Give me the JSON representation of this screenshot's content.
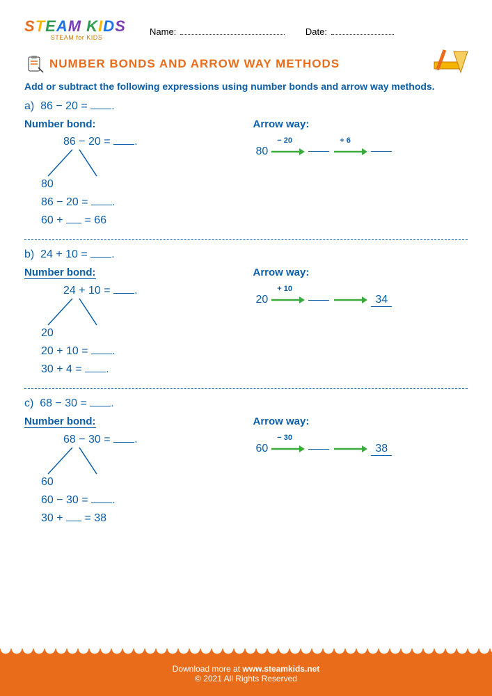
{
  "logo": {
    "line1_parts": [
      {
        "text": "S",
        "color": "#e86c1a"
      },
      {
        "text": "T",
        "color": "#f5b400"
      },
      {
        "text": "E",
        "color": "#2e9b4f"
      },
      {
        "text": "A",
        "color": "#1a73e8"
      },
      {
        "text": "M ",
        "color": "#7b3fb5"
      },
      {
        "text": "K",
        "color": "#2e9b4f"
      },
      {
        "text": "I",
        "color": "#f5b400"
      },
      {
        "text": "D",
        "color": "#1a73e8"
      },
      {
        "text": "S",
        "color": "#7b3fb5"
      }
    ],
    "subtitle": "STEAM for KIDS"
  },
  "header_fields": {
    "name_label": "Name:",
    "date_label": "Date:"
  },
  "title": "NUMBER BONDS AND ARROW WAY METHODS",
  "instructions": "Add or subtract the following expressions using number bonds and arrow way methods.",
  "labels": {
    "number_bond": "Number bond:",
    "arrow_way": "Arrow way:"
  },
  "problems": [
    {
      "id": "a)",
      "expr": "86 − 20 =",
      "nb_underlined": false,
      "bond_eq": "86 − 20 =",
      "bond_left": "80",
      "steps": [
        "86 − 20 = ___",
        "60 + __ = 66"
      ],
      "arrow": {
        "start": "80",
        "op1": "− 20",
        "mid": "",
        "op2": "+ 6",
        "end": ""
      }
    },
    {
      "id": "b)",
      "expr": "24 + 10 =",
      "nb_underlined": true,
      "bond_eq": "24 + 10 =",
      "bond_left": "20",
      "steps": [
        "20 + 10 = ___",
        "30 + 4 = ___"
      ],
      "arrow": {
        "start": "20",
        "op1": "+ 10",
        "mid": "",
        "op2": "",
        "end": "34"
      }
    },
    {
      "id": "c)",
      "expr": "68 − 30 =",
      "nb_underlined": true,
      "bond_eq": "68 − 30 =",
      "bond_left": "60",
      "steps": [
        "60 − 30 = ___",
        "30 + __ = 38"
      ],
      "arrow": {
        "start": "60",
        "op1": "− 30",
        "mid": "",
        "op2": "",
        "end": "38"
      }
    }
  ],
  "footer": {
    "line1_prefix": "Download more at ",
    "link": "www.steamkids.net",
    "line2": "© 2021 All Rights Reserved"
  },
  "colors": {
    "primary_blue": "#0b5ea8",
    "accent_orange": "#e86c1a",
    "arrow_green": "#3aab3a"
  }
}
